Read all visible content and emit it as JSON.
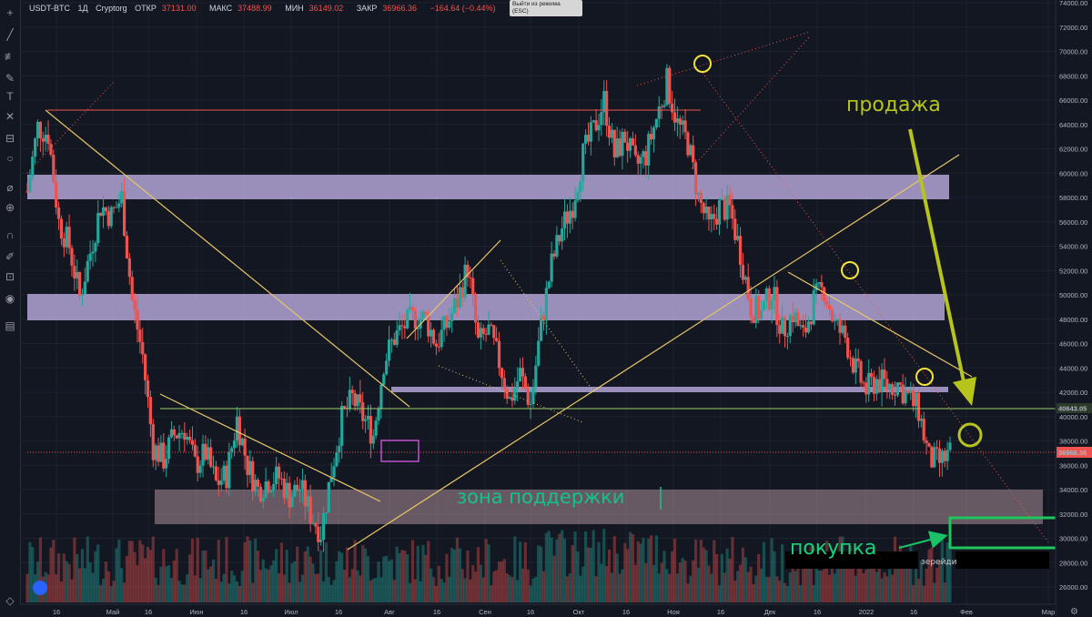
{
  "header": {
    "symbol": "USDT-BTC",
    "interval": "1Д",
    "exchange": "Cryptorg",
    "open_label": "ОТКР",
    "open_value": "37131.00",
    "high_label": "МАКС",
    "high_value": "37488.99",
    "low_label": "МИН",
    "low_value": "36149.02",
    "close_label": "ЗАКР",
    "close_value": "36966.36",
    "change": "−164.64 (−0.44%)"
  },
  "esc_tooltip": {
    "line1": "Выйти из режима",
    "line2": "(ESC)"
  },
  "colors": {
    "background": "#131722",
    "up": "#26a69a",
    "down": "#ef5350",
    "zone_band": "#b3a4d6",
    "support_zone": "#f2c4cc",
    "trendline": "#e8c766",
    "annotation_text": "#b6c41c",
    "support_text": "#16c28a",
    "buy_text": "#19d37a"
  },
  "annotations": {
    "sell": "продажа",
    "support_zone": "зона поддержки",
    "buy": "покупка",
    "watermark": "зерейди"
  },
  "price_tags": {
    "level": "40643.05",
    "last": "36966.36"
  },
  "chart_data": {
    "type": "candlestick",
    "symbol": "USDT-BTC",
    "y_axis": {
      "range": [
        25000,
        74000
      ],
      "ticks": [
        26000,
        28000,
        30000,
        32000,
        34000,
        36000,
        38000,
        40000,
        42000,
        44000,
        46000,
        48000,
        50000,
        52000,
        54000,
        56000,
        58000,
        60000,
        62000,
        64000,
        66000,
        68000,
        70000,
        72000,
        74000
      ],
      "tick_labels": [
        "26000.00",
        "28000.00",
        "30000.00",
        "32000.00",
        "34000.00",
        "36000.00",
        "38000.00",
        "40000.00",
        "42000.00",
        "44000.00",
        "46000.00",
        "48000.00",
        "50000.00",
        "52000.00",
        "54000.00",
        "56000.00",
        "58000.00",
        "60000.00",
        "62000.00",
        "64000.00",
        "66000.00",
        "68000.00",
        "70000.00",
        "72000.00",
        "74000.00"
      ]
    },
    "x_axis": {
      "tick_labels": [
        "16",
        "Май",
        "16",
        "Июн",
        "16",
        "Июл",
        "16",
        "Авг",
        "16",
        "Сен",
        "16",
        "Окт",
        "16",
        "Ноя",
        "16",
        "Дек",
        "16",
        "2022",
        "16",
        "Фев",
        "Мар"
      ]
    },
    "closes": [
      58500,
      63800,
      63200,
      56000,
      54000,
      49800,
      53500,
      57300,
      56500,
      58000,
      49500,
      45000,
      37500,
      36500,
      38500,
      39000,
      36000,
      37000,
      34500,
      35200,
      39800,
      36000,
      34000,
      34800,
      35000,
      33500,
      34200,
      32000,
      30500,
      35500,
      39800,
      41500,
      40000,
      38500,
      44500,
      46500,
      47500,
      48200,
      48000,
      46000,
      47500,
      49500,
      52300,
      46000,
      47000,
      44500,
      41300,
      43500,
      41000,
      47500,
      52500,
      55500,
      57500,
      61500,
      63500,
      66000,
      61500,
      63000,
      60500,
      61500,
      64500,
      67500,
      64000,
      62500,
      58000,
      55500,
      57200,
      57000,
      53500,
      49000,
      48500,
      50300,
      47000,
      48500,
      46500,
      49500,
      50500,
      47500,
      46500,
      43800,
      42200,
      43000,
      42500,
      42700,
      41600,
      40500,
      36500,
      36200,
      36966
    ]
  }
}
